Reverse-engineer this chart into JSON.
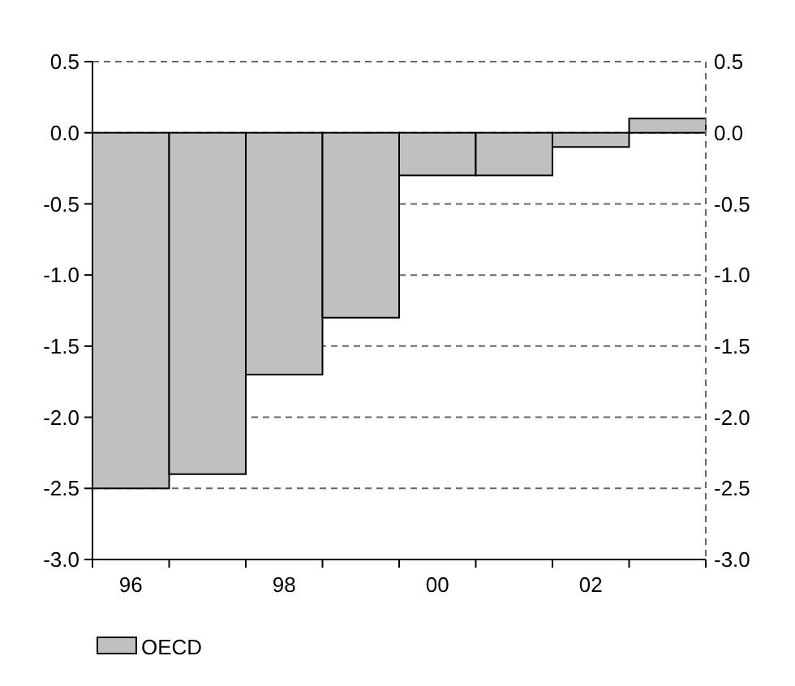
{
  "chart_data": {
    "type": "bar",
    "categories": [
      "96",
      null,
      "98",
      null,
      "00",
      null,
      "02",
      null
    ],
    "series": [
      {
        "name": "OECD",
        "color": "#c0c0c0",
        "values": [
          -2.5,
          -2.4,
          -1.7,
          -1.3,
          -0.3,
          -0.3,
          -0.1,
          0.1
        ]
      }
    ],
    "ylim": [
      -3.0,
      0.5
    ],
    "yticks": [
      {
        "value": 0.5,
        "label": "0.5"
      },
      {
        "value": 0,
        "label": "0.0"
      },
      {
        "value": -0.5,
        "label": "-0.5"
      },
      {
        "value": -1,
        "label": "-1.0"
      },
      {
        "value": -1.5,
        "label": "-1.5"
      },
      {
        "value": -2,
        "label": "-2.0"
      },
      {
        "value": -2.5,
        "label": "-2.5"
      },
      {
        "value": -3,
        "label": "-3.0"
      }
    ],
    "y2lim": [
      -3.0,
      0.5
    ],
    "y2ticks": [
      {
        "value": 0.5,
        "label": "0.5"
      },
      {
        "value": 0,
        "label": "0.0"
      },
      {
        "value": -0.5,
        "label": "-0.5"
      },
      {
        "value": -1,
        "label": "-1.0"
      },
      {
        "value": -1.5,
        "label": "-1.5"
      },
      {
        "value": -2,
        "label": "-2.0"
      },
      {
        "value": -2.5,
        "label": "-2.5"
      },
      {
        "value": -3,
        "label": "-3.0"
      }
    ],
    "grid": "y",
    "legend": "bottom left"
  }
}
